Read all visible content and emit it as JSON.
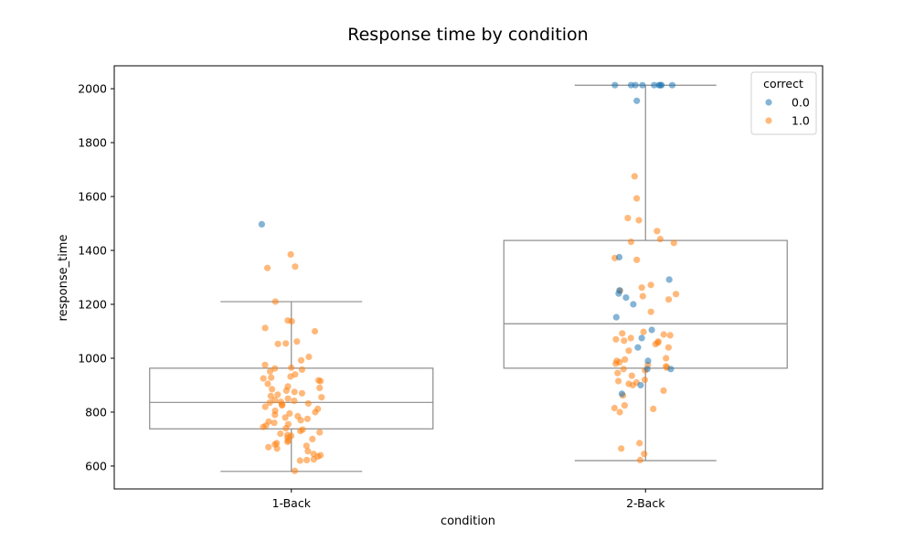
{
  "chart_data": {
    "type": "box",
    "title": "Response time by condition",
    "xlabel": "condition",
    "ylabel": "response_time",
    "categories": [
      "1-Back",
      "2-Back"
    ],
    "ylim": [
      515,
      2085
    ],
    "yticks": [
      600,
      800,
      1000,
      1200,
      1400,
      1600,
      1800,
      2000
    ],
    "grid": false,
    "legend": {
      "title": "correct",
      "placement": "top-right",
      "entries": [
        {
          "label": "0.0",
          "color": "#1f77b4"
        },
        {
          "label": "1.0",
          "color": "#ff7f0e"
        }
      ]
    },
    "boxes": [
      {
        "category": "1-Back",
        "whisker_low": 580,
        "q1": 738,
        "median": 836,
        "q3": 963,
        "whisker_high": 1210
      },
      {
        "category": "2-Back",
        "whisker_low": 620,
        "q1": 963,
        "median": 1128,
        "q3": 1437,
        "whisker_high": 2013
      }
    ],
    "points": {
      "1-Back": {
        "correct_0": [
          1497
        ],
        "correct_1": [
          1385,
          1340,
          1335,
          1210,
          1140,
          1137,
          1112,
          1100,
          1062,
          1055,
          1053,
          1005,
          992,
          975,
          965,
          962,
          958,
          951,
          940,
          932,
          928,
          925,
          918,
          915,
          905,
          895,
          890,
          885,
          880,
          875,
          870,
          865,
          860,
          855,
          850,
          845,
          842,
          838,
          835,
          832,
          828,
          825,
          820,
          812,
          805,
          800,
          795,
          790,
          785,
          780,
          775,
          770,
          765,
          760,
          755,
          750,
          745,
          740,
          735,
          730,
          725,
          720,
          715,
          712,
          705,
          700,
          695,
          690,
          685,
          680,
          675,
          670,
          665,
          655,
          645,
          640,
          635,
          625,
          622,
          620,
          582
        ]
      },
      "2-Back": {
        "correct_0": [
          2013,
          2013,
          2013,
          2013,
          2013,
          2013,
          2013,
          2013,
          2013,
          1955,
          1375,
          1292,
          1252,
          1240,
          1225,
          1200,
          1152,
          1105,
          1075,
          1040,
          990,
          960,
          960,
          900,
          868
        ],
        "correct_1": [
          1675,
          1593,
          1520,
          1512,
          1472,
          1442,
          1432,
          1428,
          1372,
          1365,
          1272,
          1262,
          1250,
          1238,
          1230,
          1218,
          1172,
          1098,
          1092,
          1088,
          1085,
          1075,
          1070,
          1065,
          1062,
          1058,
          1052,
          1040,
          1028,
          1000,
          995,
          990,
          985,
          980,
          975,
          970,
          965,
          960,
          955,
          945,
          935,
          920,
          915,
          910,
          905,
          900,
          880,
          862,
          825,
          815,
          812,
          800,
          685,
          665,
          645,
          622
        ]
      }
    }
  }
}
